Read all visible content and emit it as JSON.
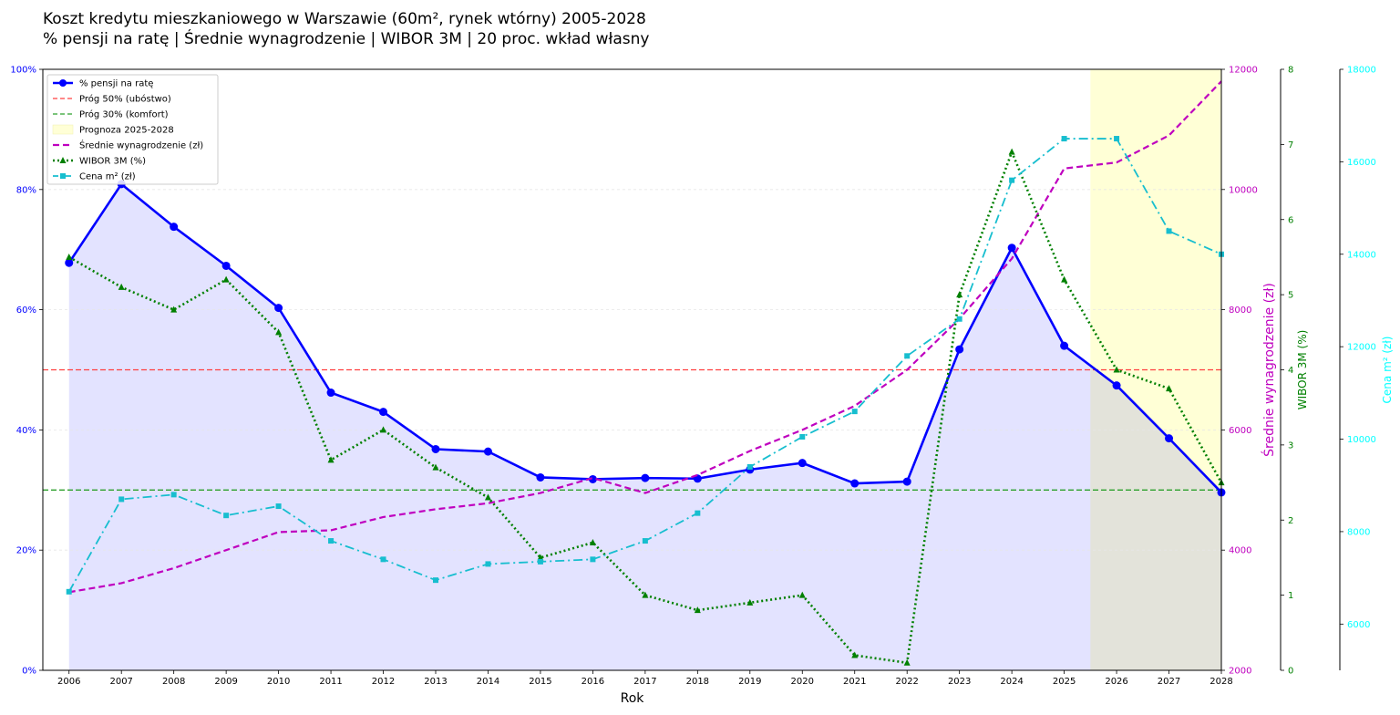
{
  "title_line1": "Koszt kredytu mieszkaniowego w Warszawie (60m², rynek wtórny) 2005-2028",
  "title_line2": "% pensji na ratę | Średnie wynagrodzenie | WIBOR 3M | 20 proc. wkład własny",
  "chart_data": {
    "type": "line",
    "x": [
      2006,
      2007,
      2008,
      2009,
      2010,
      2011,
      2012,
      2013,
      2014,
      2015,
      2016,
      2017,
      2018,
      2019,
      2020,
      2021,
      2022,
      2023,
      2024,
      2025,
      2026,
      2027,
      2028
    ],
    "xlabel": "Rok",
    "xlim": [
      2005.5,
      2028
    ],
    "grid": "horizontal",
    "legend_position": "top-left",
    "forecast_region": {
      "label": "Prognoza 2025-2028",
      "from": 2025.5,
      "to": 2028,
      "color": "#ffffd6"
    },
    "thresholds": [
      {
        "name": "Próg 50% (ubóstwo)",
        "value": 50,
        "color": "#ff4040"
      },
      {
        "name": "Próg 30% (komfort)",
        "value": 30,
        "color": "#2ca02c"
      }
    ],
    "axes": {
      "left": {
        "ylim": [
          0,
          100
        ],
        "ticks": [
          "0%",
          "20%",
          "40%",
          "60%",
          "80%",
          "100%"
        ],
        "color": "#0000ff"
      },
      "salary": {
        "ylabel": "Średnie wynagrodzenie (zł)",
        "ylim": [
          2000,
          12000
        ],
        "ticks": [
          "2000",
          "4000",
          "6000",
          "8000",
          "10000",
          "12000"
        ],
        "color": "#bf00bf"
      },
      "wibor": {
        "ylabel": "WIBOR 3M (%)",
        "ylim": [
          0,
          8
        ],
        "ticks": [
          "0",
          "1",
          "2",
          "3",
          "4",
          "5",
          "6",
          "7",
          "8"
        ],
        "color": "#008000"
      },
      "price": {
        "ylabel": "Cena m² (zł)",
        "ylim": [
          5000,
          18000
        ],
        "ticks": [
          "6000",
          "8000",
          "10000",
          "12000",
          "14000",
          "16000",
          "18000"
        ],
        "color": "#00ffff"
      }
    },
    "series": [
      {
        "name": "% pensji na ratę",
        "axis": "left",
        "color": "#0000ff",
        "values": [
          67.8,
          80.9,
          73.8,
          67.3,
          60.3,
          46.2,
          43.0,
          36.8,
          36.4,
          32.1,
          31.8,
          32.0,
          31.9,
          33.4,
          34.5,
          31.1,
          31.4,
          53.4,
          70.3,
          54.0,
          47.4,
          38.6,
          29.6
        ]
      },
      {
        "name": "Średnie wynagrodzenie (zł)",
        "axis": "salary",
        "color": "#bf00bf",
        "values": [
          3300,
          3450,
          3700,
          4000,
          4300,
          4330,
          4550,
          4680,
          4780,
          4950,
          5200,
          4950,
          5250,
          5650,
          6000,
          6400,
          7000,
          7850,
          8850,
          10350,
          10450,
          10900,
          11800
        ]
      },
      {
        "name": "WIBOR 3M (%)",
        "axis": "wibor",
        "color": "#008000",
        "values": [
          5.5,
          5.1,
          4.8,
          5.2,
          4.5,
          2.8,
          3.2,
          2.7,
          2.3,
          1.5,
          1.7,
          1.0,
          0.8,
          0.9,
          1.0,
          0.2,
          0.1,
          5.0,
          6.9,
          5.2,
          4.0,
          3.75,
          2.5
        ]
      },
      {
        "name": "Cena m² (zł)",
        "axis": "price",
        "color": "#17becf",
        "values": [
          6700,
          8700,
          8800,
          8350,
          8550,
          7800,
          7400,
          6950,
          7300,
          7350,
          7400,
          7800,
          8400,
          9400,
          10050,
          10600,
          11800,
          12600,
          15600,
          16500,
          16500,
          14500,
          14000
        ]
      }
    ]
  }
}
